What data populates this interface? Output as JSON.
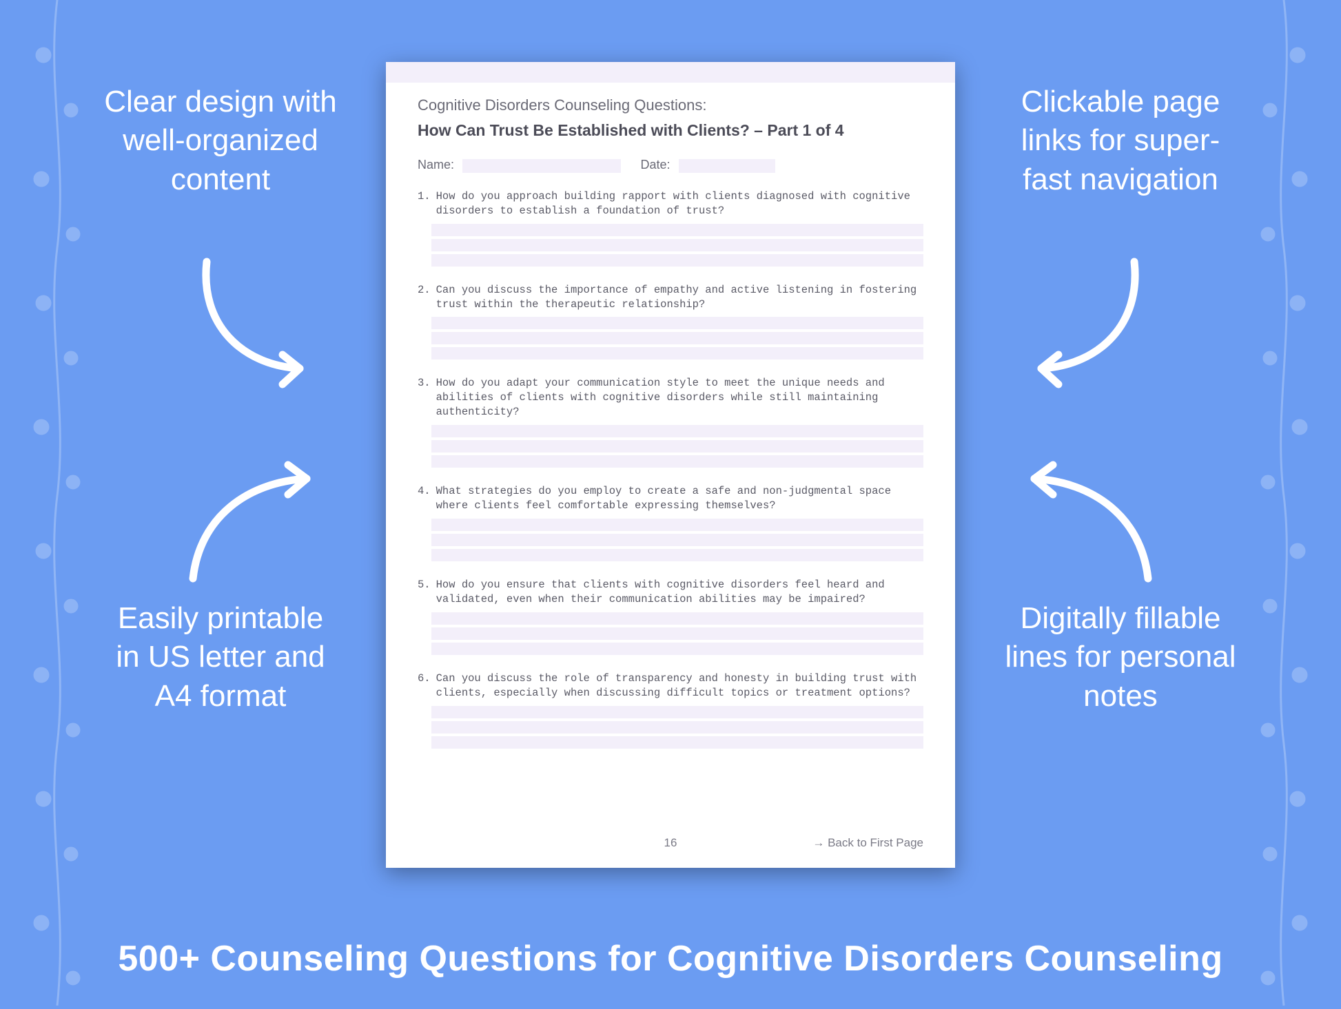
{
  "colors": {
    "page_bg": "#6b9cf2",
    "callout_text": "#ffffff",
    "sheet_bg": "#ffffff",
    "sheet_shadow": "rgba(0,0,0,0.35)",
    "accent_lavender": "#f3effa",
    "body_text": "#5a5a66",
    "heading_text": "#4b4b57",
    "muted_text": "#6a6a76",
    "vine_tint": "#ffffff"
  },
  "callouts": {
    "top_left": "Clear design with well-organized content",
    "top_right": "Clickable page links for super-fast navigation",
    "bottom_left": "Easily printable in US letter and A4 format",
    "bottom_right": "Digitally fillable lines for personal notes"
  },
  "banner": "500+ Counseling Questions for Cognitive Disorders Counseling",
  "sheet": {
    "category": "Cognitive Disorders Counseling Questions:",
    "subtitle": "How Can Trust Be Established with Clients? – Part 1 of 4",
    "name_label": "Name:",
    "date_label": "Date:",
    "page_number": "16",
    "back_link": "→ Back to First Page",
    "questions": [
      "How do you approach building rapport with clients diagnosed with cognitive disorders to establish a foundation of trust?",
      "Can you discuss the importance of empathy and active listening in fostering trust within the therapeutic relationship?",
      "How do you adapt your communication style to meet the unique needs and abilities of clients with cognitive disorders while still maintaining authenticity?",
      "What strategies do you employ to create a safe and non-judgmental space where clients feel comfortable expressing themselves?",
      "How do you ensure that clients with cognitive disorders feel heard and validated, even when their communication abilities may be impaired?",
      "Can you discuss the role of transparency and honesty in building trust with clients, especially when discussing difficult topics or treatment options?"
    ],
    "answer_line_count": 3
  }
}
